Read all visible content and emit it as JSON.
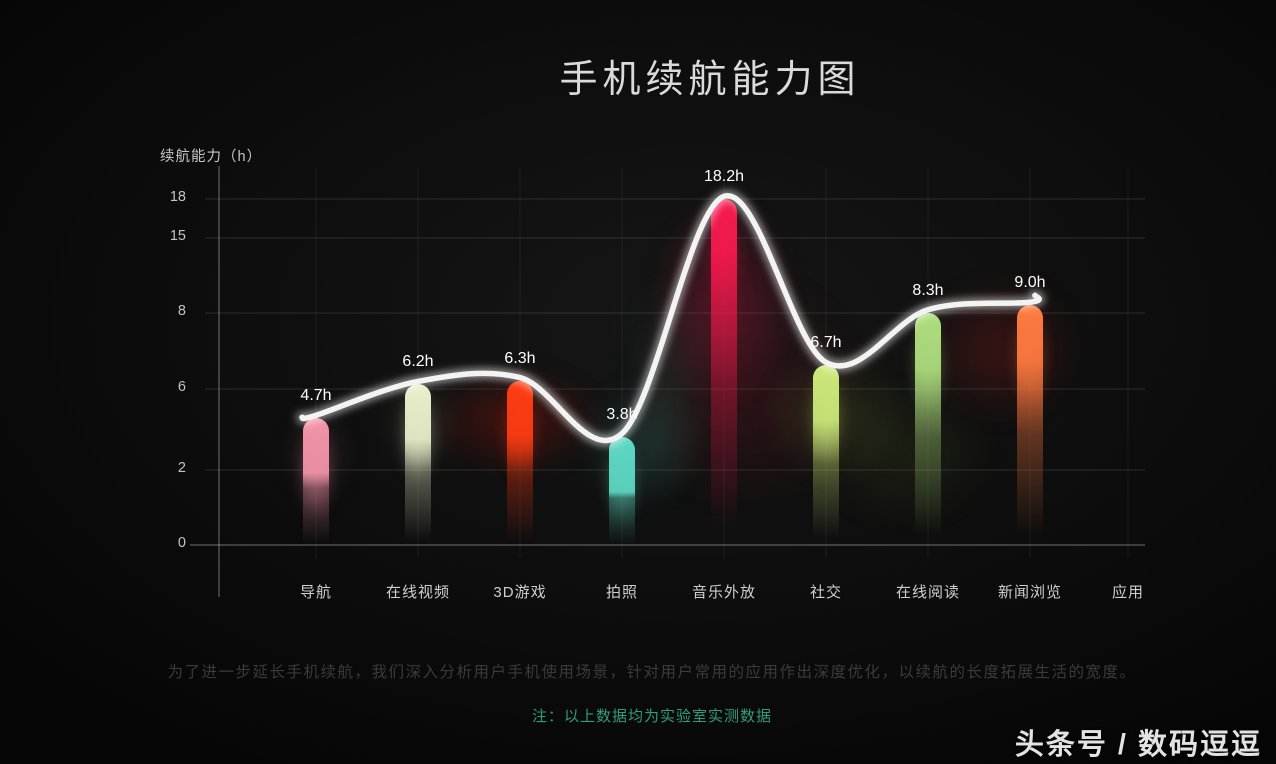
{
  "title": "手机续航能力图",
  "chart_data": {
    "type": "line",
    "title": "手机续航能力图",
    "ylabel": "续航能力（h）",
    "xlabel": "应用",
    "categories": [
      "导航",
      "在线视频",
      "3D游戏",
      "拍照",
      "音乐外放",
      "社交",
      "在线阅读",
      "新闻浏览"
    ],
    "values": [
      4.7,
      6.2,
      6.3,
      3.8,
      18.2,
      6.7,
      8.3,
      9.0
    ],
    "value_labels": [
      "4.7h",
      "6.2h",
      "6.3h",
      "3.8h",
      "18.2h",
      "6.7h",
      "8.3h",
      "9.0h"
    ],
    "value_label_suffix": "h",
    "yticks": [
      0,
      2,
      6,
      8,
      15,
      18
    ],
    "ylim": [
      0,
      19
    ],
    "grid": true,
    "legend": false,
    "line_color": "#f3f3f3",
    "bar_colors": [
      "#f394a9",
      "#e9efcb",
      "#ff3c12",
      "#5ed8c3",
      "#f7194e",
      "#cde979",
      "#aede7e",
      "#ff7a40"
    ]
  },
  "footer": {
    "description": "为了进一步延长手机续航，我们深入分析用户手机使用场景，针对用户常用的应用作出深度优化，以续航的长度拓展生活的宽度。",
    "note": "注：以上数据均为实验室实测数据",
    "note_color": "#2f9e78",
    "watermark": "头条号 / 数码逗逗"
  }
}
